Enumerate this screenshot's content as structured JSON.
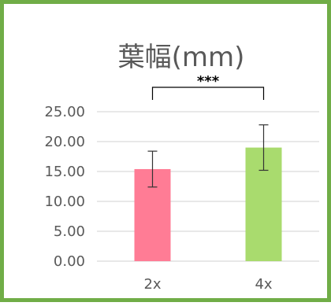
{
  "chart_data": {
    "type": "bar",
    "title": "葉幅(mm)",
    "categories": [
      "2x",
      "4x"
    ],
    "values": [
      15.4,
      19.0
    ],
    "error": [
      3.0,
      3.8
    ],
    "colors": [
      "#ff7c95",
      "#a9db6e"
    ],
    "ylim": [
      0,
      25
    ],
    "yticks": [
      "0.00",
      "5.00",
      "10.00",
      "15.00",
      "20.00",
      "25.00"
    ],
    "grid": true,
    "annotation": "***",
    "border_color": "#70ad47"
  }
}
